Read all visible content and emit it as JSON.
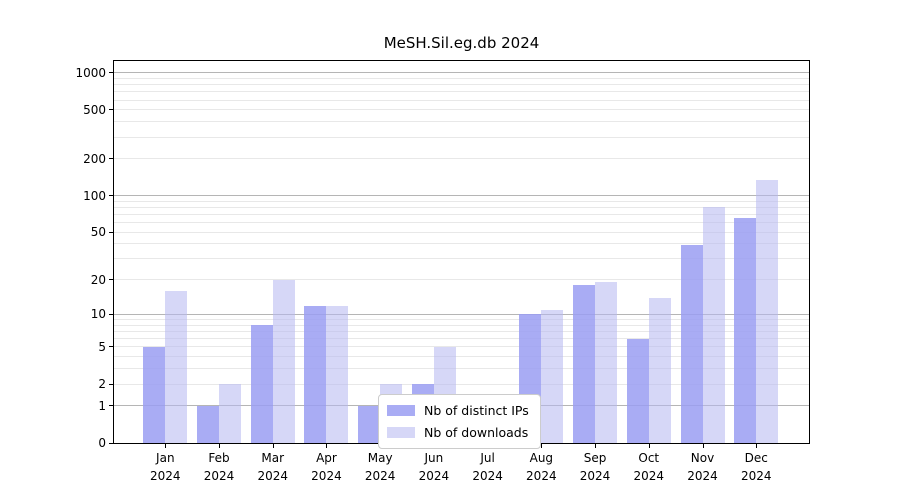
{
  "chart_data": {
    "type": "bar",
    "title": "MeSH.Sil.eg.db 2024",
    "year_label": "2024",
    "categories": [
      "Jan",
      "Feb",
      "Mar",
      "Apr",
      "May",
      "Jun",
      "Jul",
      "Aug",
      "Sep",
      "Oct",
      "Nov",
      "Dec"
    ],
    "series": [
      {
        "name": "Nb of distinct IPs",
        "values": [
          5,
          1,
          8,
          12,
          1,
          2,
          0,
          10,
          18,
          6,
          39,
          65
        ]
      },
      {
        "name": "Nb of downloads",
        "values": [
          16,
          2,
          20,
          12,
          2,
          5,
          0,
          11,
          19,
          14,
          80,
          135
        ]
      }
    ],
    "y_scale": "log1p",
    "y_ticks": [
      0,
      1,
      2,
      5,
      10,
      20,
      50,
      100,
      200,
      500,
      1000
    ],
    "y_grid_major": [
      1,
      10,
      100,
      1000
    ],
    "y_grid_minor": [
      2,
      3,
      4,
      5,
      6,
      7,
      8,
      9,
      20,
      30,
      40,
      50,
      60,
      70,
      80,
      90,
      200,
      300,
      400,
      500,
      600,
      700,
      800,
      900
    ],
    "ylim_top": 1270,
    "legend_position": "lower center",
    "grid_on": true,
    "colors": {
      "ips_color": "#9a9df2",
      "ips_opacity": "0.85",
      "downloads_color": "#b4b7f0",
      "downloads_opacity": "0.55",
      "grid_major": "#b5b5b5",
      "grid_minor": "#e8e8e8",
      "axis": "#000000"
    }
  }
}
